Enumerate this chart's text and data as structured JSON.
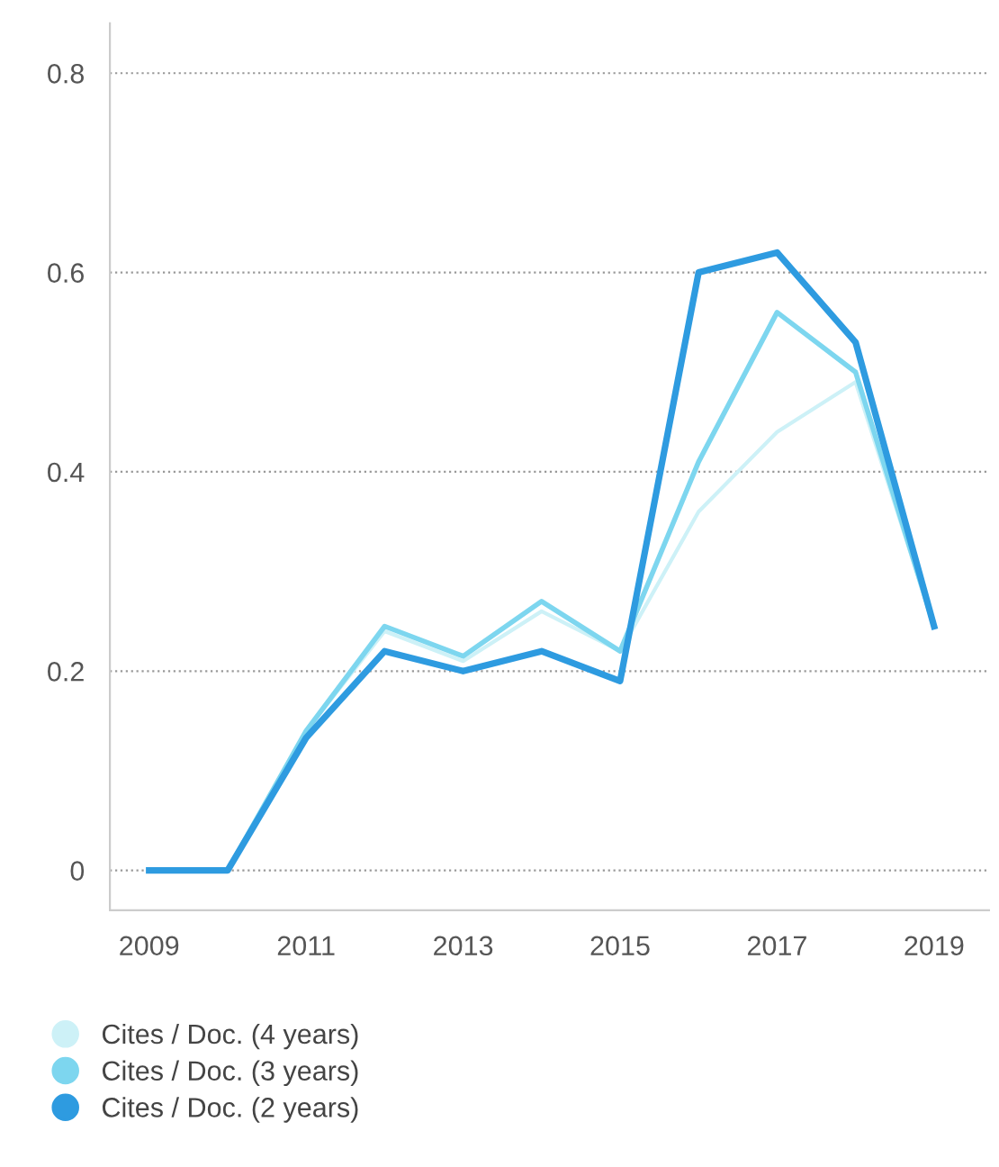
{
  "chart_data": {
    "type": "line",
    "x": [
      2009,
      2010,
      2011,
      2012,
      2013,
      2014,
      2015,
      2016,
      2017,
      2018,
      2019
    ],
    "series": [
      {
        "name": "Cites / Doc. (4 years)",
        "color": "#cdf1f7",
        "values": [
          0,
          0,
          0.14,
          0.24,
          0.21,
          0.26,
          0.22,
          0.36,
          0.44,
          0.49,
          0.245
        ]
      },
      {
        "name": "Cites / Doc. (3 years)",
        "color": "#7dd6ef",
        "values": [
          0,
          0,
          0.14,
          0.245,
          0.215,
          0.27,
          0.22,
          0.41,
          0.56,
          0.5,
          0.245
        ]
      },
      {
        "name": "Cites / Doc. (2 years)",
        "color": "#2e9be0",
        "values": [
          0,
          0,
          0.133,
          0.22,
          0.2,
          0.22,
          0.19,
          0.6,
          0.62,
          0.53,
          0.245
        ]
      }
    ],
    "xlim": [
      2008.5,
      2019.7
    ],
    "xticks": [
      2009,
      2011,
      2013,
      2015,
      2017,
      2019
    ],
    "ylim": [
      -0.04,
      0.85
    ],
    "yticks": [
      0,
      0.2,
      0.4,
      0.6,
      0.8
    ],
    "grid": "y",
    "legend": "bottom",
    "line_style": "solid"
  }
}
